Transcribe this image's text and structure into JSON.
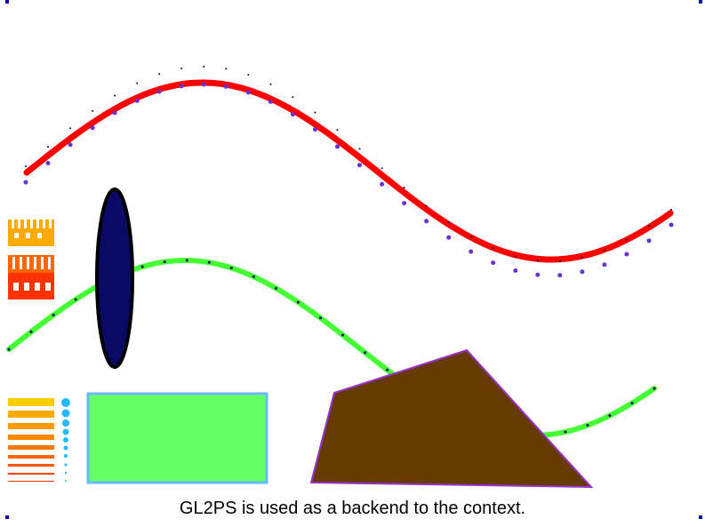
{
  "caption": "GL2PS is used as a backend to the context.",
  "colors": {
    "background": "#ffffff",
    "sine_red": "#ff0000",
    "sine_green": "#44ff33",
    "dots_purple": "#6633cc",
    "dots_navy": "#000066",
    "ellipse_fill": "#0a0a66",
    "ellipse_stroke": "#000000",
    "rect_fill": "#66ff66",
    "rect_stroke": "#66bbff",
    "polygon_fill": "#663a00",
    "polygon_stroke": "#9933cc",
    "corner_markers": "#0000cc",
    "point_markers": "#22bbff"
  }
}
